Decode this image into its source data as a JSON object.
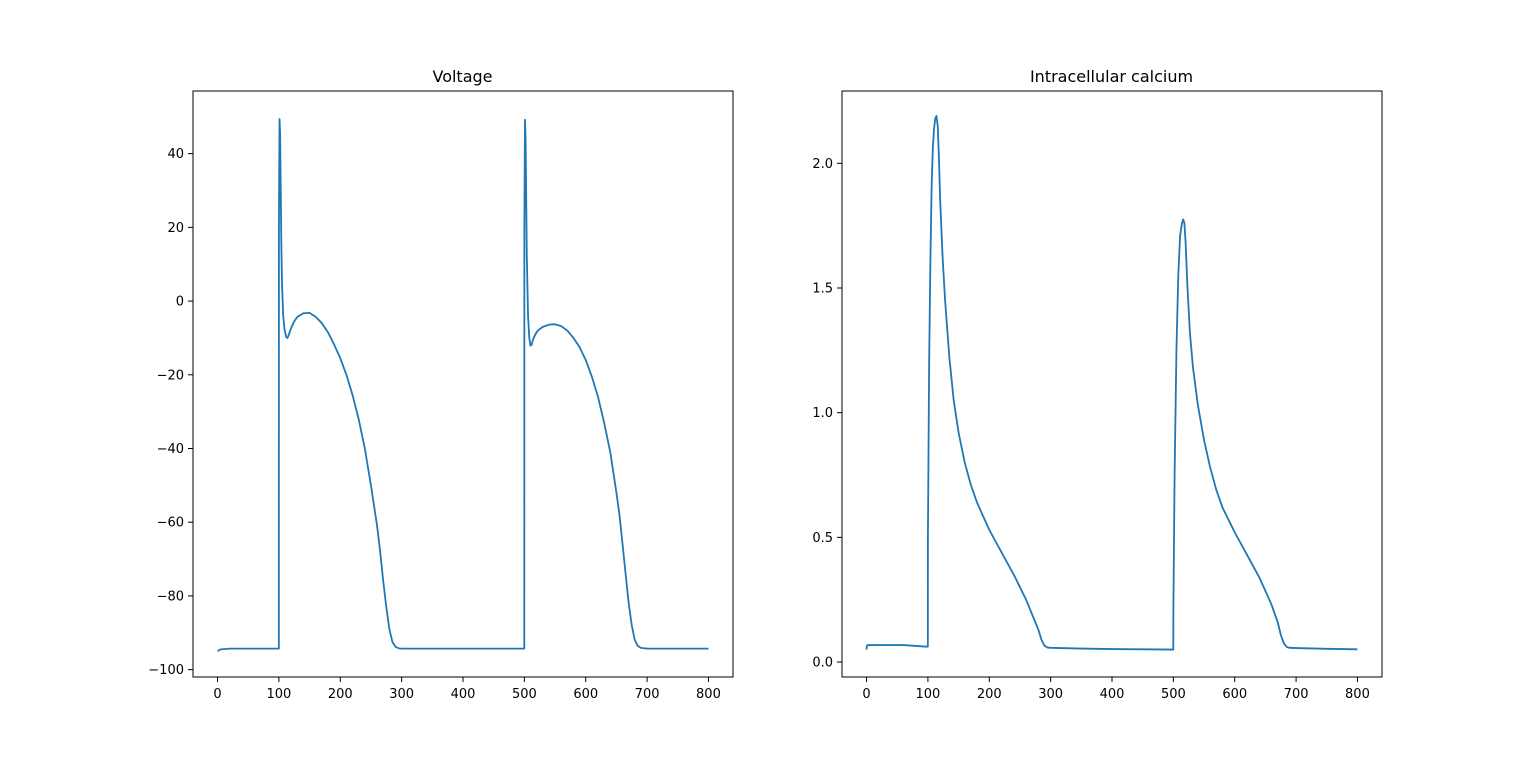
{
  "chart_data": [
    {
      "type": "line",
      "title": "Voltage",
      "xlabel": "",
      "ylabel": "",
      "xlim": [
        -40,
        840
      ],
      "ylim": [
        -102,
        57
      ],
      "xticks": [
        0,
        100,
        200,
        300,
        400,
        500,
        600,
        700,
        800
      ],
      "yticks": [
        -100,
        -80,
        -60,
        -40,
        -20,
        0,
        20,
        40
      ],
      "grid": false,
      "line_color": "#1f77b4",
      "series": [
        {
          "x": [
            0,
            5,
            20,
            50,
            99.9,
            100,
            101,
            102,
            103,
            104,
            105,
            107,
            109,
            112,
            114,
            116,
            120,
            125,
            130,
            140,
            150,
            160,
            170,
            180,
            190,
            200,
            210,
            220,
            230,
            240,
            250,
            260,
            265,
            270,
            275,
            280,
            285,
            290,
            295,
            300,
            305,
            310,
            320,
            350,
            400,
            450,
            499.9,
            500,
            501,
            502,
            503,
            504,
            506,
            508,
            510,
            512,
            514,
            518,
            522,
            530,
            540,
            550,
            560,
            570,
            580,
            590,
            600,
            610,
            620,
            630,
            640,
            650,
            655,
            660,
            665,
            670,
            675,
            680,
            685,
            690,
            700,
            750,
            800
          ],
          "y": [
            -95,
            -94.5,
            -94.3,
            -94.3,
            -94.3,
            20,
            49.4,
            45,
            30,
            15,
            5,
            -4,
            -7.5,
            -9.8,
            -10,
            -9.2,
            -7.3,
            -5.5,
            -4.3,
            -3.3,
            -3.2,
            -4.3,
            -6,
            -8.5,
            -11.8,
            -15.5,
            -20,
            -25.5,
            -32,
            -40,
            -50,
            -61,
            -68,
            -76,
            -83,
            -89,
            -92.5,
            -93.8,
            -94.2,
            -94.3,
            -94.3,
            -94.3,
            -94.3,
            -94.3,
            -94.3,
            -94.3,
            -94.3,
            20,
            49.2,
            44,
            28,
            12,
            -4,
            -10,
            -12.1,
            -11.8,
            -10.5,
            -9,
            -8,
            -7,
            -6.4,
            -6.3,
            -6.8,
            -8,
            -10,
            -12.5,
            -16,
            -20.5,
            -26,
            -33,
            -41,
            -52,
            -58,
            -66,
            -74,
            -82,
            -88,
            -92,
            -93.6,
            -94.1,
            -94.3,
            -94.3,
            -94.3
          ]
        }
      ]
    },
    {
      "type": "line",
      "title": "Intracellular calcium",
      "xlabel": "",
      "ylabel": "",
      "xlim": [
        -40,
        840
      ],
      "ylim": [
        -0.06,
        2.29
      ],
      "xticks": [
        0,
        100,
        200,
        300,
        400,
        500,
        600,
        700,
        800
      ],
      "yticks": [
        0.0,
        0.5,
        1.0,
        1.5,
        2.0
      ],
      "grid": false,
      "line_color": "#1f77b4",
      "series": [
        {
          "x": [
            0,
            0.5,
            2,
            20,
            60,
            95,
            99.9,
            100,
            102,
            104,
            106,
            108,
            110,
            112,
            114,
            116,
            118,
            120,
            124,
            128,
            135,
            142,
            150,
            160,
            170,
            180,
            200,
            220,
            240,
            260,
            270,
            280,
            285,
            290,
            295,
            300,
            350,
            400,
            450,
            499.9,
            500,
            502,
            505,
            508,
            511,
            514,
            516,
            518,
            520,
            523,
            527,
            532,
            540,
            550,
            560,
            570,
            580,
            600,
            620,
            640,
            660,
            670,
            675,
            680,
            685,
            690,
            700,
            750,
            800
          ],
          "y": [
            0.05,
            0.065,
            0.068,
            0.068,
            0.068,
            0.062,
            0.062,
            0.5,
            1.2,
            1.6,
            1.9,
            2.06,
            2.14,
            2.18,
            2.19,
            2.15,
            2.02,
            1.85,
            1.62,
            1.45,
            1.22,
            1.05,
            0.92,
            0.8,
            0.71,
            0.64,
            0.53,
            0.44,
            0.35,
            0.25,
            0.19,
            0.13,
            0.09,
            0.065,
            0.058,
            0.057,
            0.054,
            0.052,
            0.051,
            0.05,
            0.2,
            0.75,
            1.25,
            1.55,
            1.71,
            1.76,
            1.775,
            1.76,
            1.68,
            1.5,
            1.32,
            1.18,
            1.03,
            0.89,
            0.78,
            0.69,
            0.62,
            0.52,
            0.43,
            0.34,
            0.23,
            0.16,
            0.11,
            0.075,
            0.06,
            0.057,
            0.056,
            0.053,
            0.051
          ]
        }
      ]
    }
  ]
}
